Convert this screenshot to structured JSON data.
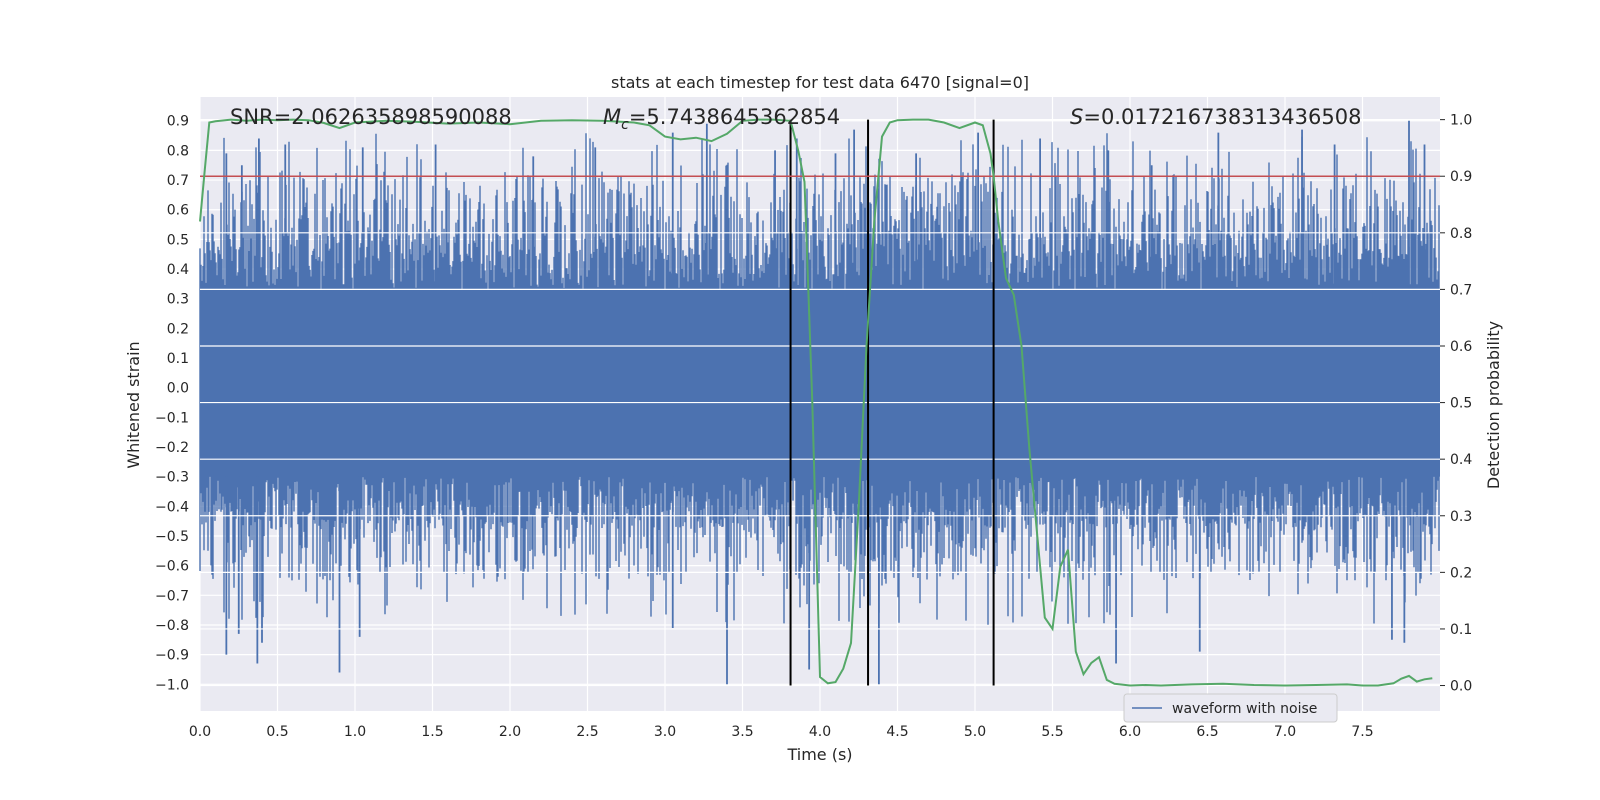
{
  "chart_data": {
    "type": "line",
    "title": "stats at each timestep for test data 6470 [signal=0]",
    "xlabel": "Time (s)",
    "ylabel_left": "Whitened strain",
    "ylabel_right": "Detection probability",
    "xlim": [
      0.0,
      8.0
    ],
    "ylim_left": [
      -1.09,
      0.98
    ],
    "ylim_right": [
      -0.045,
      1.04
    ],
    "x_ticks": [
      "0.0",
      "0.5",
      "1.0",
      "1.5",
      "2.0",
      "2.5",
      "3.0",
      "3.5",
      "4.0",
      "4.5",
      "5.0",
      "5.5",
      "6.0",
      "6.5",
      "7.0",
      "7.5"
    ],
    "y_left_ticks": [
      "0.9",
      "0.8",
      "0.7",
      "0.6",
      "0.5",
      "0.4",
      "0.3",
      "0.2",
      "0.1",
      "0.0",
      "−0.1",
      "−0.2",
      "−0.3",
      "−0.4",
      "−0.5",
      "−0.6",
      "−0.7",
      "−0.8",
      "−0.9",
      "−1.0"
    ],
    "y_right_ticks": [
      "1.0",
      "0.9",
      "0.8",
      "0.7",
      "0.6",
      "0.5",
      "0.4",
      "0.3",
      "0.2",
      "0.1",
      "0.0"
    ],
    "annotations": {
      "snr": "SNR=2.062635898590088",
      "mc_symbol": "M",
      "mc_sub": "c",
      "mc_value": "=5.7438645362854",
      "s_symbol": "S",
      "s_value": "=0.017216738313436508"
    },
    "threshold": {
      "value": 0.9,
      "axis": "right",
      "color": "#c44e52"
    },
    "vertical_lines": [
      3.81,
      4.31,
      5.12
    ],
    "legend": {
      "label": "waveform with noise",
      "placement": "lower-right"
    },
    "waveform": {
      "name": "waveform with noise",
      "color": "#4c72b0",
      "core_envelope": [
        -0.3,
        0.33
      ],
      "min_value": -1.0,
      "max_value": 0.9,
      "peak_spikes": [
        {
          "x": 0.27,
          "y": 0.75
        },
        {
          "x": 0.38,
          "y": 0.84
        },
        {
          "x": 0.17,
          "y": 0.79
        },
        {
          "x": 0.55,
          "y": 0.82
        },
        {
          "x": 1.05,
          "y": 0.81
        },
        {
          "x": 1.52,
          "y": 0.82
        },
        {
          "x": 2.15,
          "y": 0.78
        },
        {
          "x": 2.55,
          "y": 0.81
        },
        {
          "x": 3.05,
          "y": 0.86
        },
        {
          "x": 3.27,
          "y": 0.89
        },
        {
          "x": 3.71,
          "y": 0.8
        },
        {
          "x": 3.85,
          "y": 0.84
        },
        {
          "x": 4.1,
          "y": 0.79
        },
        {
          "x": 4.22,
          "y": 0.87
        },
        {
          "x": 4.62,
          "y": 0.79
        },
        {
          "x": 5.02,
          "y": 0.86
        },
        {
          "x": 5.42,
          "y": 0.84
        },
        {
          "x": 5.86,
          "y": 0.8
        },
        {
          "x": 6.14,
          "y": 0.75
        },
        {
          "x": 6.57,
          "y": 0.86
        },
        {
          "x": 7.11,
          "y": 0.87
        },
        {
          "x": 7.32,
          "y": 0.82
        },
        {
          "x": 7.8,
          "y": 0.9
        },
        {
          "x": 7.9,
          "y": 0.82
        }
      ],
      "trough_spikes": [
        {
          "x": 0.17,
          "y": -0.9
        },
        {
          "x": 0.25,
          "y": -0.83
        },
        {
          "x": 0.37,
          "y": -0.93
        },
        {
          "x": 0.4,
          "y": -0.86
        },
        {
          "x": 0.9,
          "y": -0.96
        },
        {
          "x": 1.03,
          "y": -0.84
        },
        {
          "x": 3.4,
          "y": -1.0
        },
        {
          "x": 3.93,
          "y": -0.95
        },
        {
          "x": 4.38,
          "y": -1.0
        },
        {
          "x": 5.91,
          "y": -0.93
        },
        {
          "x": 6.45,
          "y": -0.89
        },
        {
          "x": 7.77,
          "y": -0.86
        },
        {
          "x": 7.69,
          "y": -0.85
        },
        {
          "x": 3.05,
          "y": -0.81
        }
      ]
    },
    "detection_probability": {
      "name": "Detection probability",
      "color": "#55a868",
      "x": [
        0.0,
        0.03,
        0.06,
        0.1,
        0.2,
        0.3,
        0.4,
        0.5,
        0.6,
        0.7,
        0.8,
        0.9,
        1.0,
        1.2,
        1.4,
        1.6,
        1.8,
        2.0,
        2.2,
        2.4,
        2.6,
        2.8,
        2.9,
        3.0,
        3.1,
        3.2,
        3.3,
        3.4,
        3.5,
        3.6,
        3.7,
        3.81,
        3.86,
        3.9,
        3.95,
        4.0,
        4.05,
        4.1,
        4.15,
        4.2,
        4.25,
        4.3,
        4.35,
        4.4,
        4.45,
        4.5,
        4.6,
        4.7,
        4.8,
        4.9,
        5.0,
        5.05,
        5.1,
        5.12,
        5.15,
        5.2,
        5.25,
        5.3,
        5.35,
        5.4,
        5.45,
        5.5,
        5.55,
        5.6,
        5.65,
        5.7,
        5.75,
        5.8,
        5.85,
        5.9,
        6.0,
        6.1,
        6.2,
        6.4,
        6.6,
        6.8,
        7.0,
        7.2,
        7.4,
        7.5,
        7.6,
        7.7,
        7.75,
        7.8,
        7.85,
        7.9,
        7.95
      ],
      "y": [
        0.82,
        0.91,
        0.995,
        0.997,
        1.0,
        0.998,
        1.0,
        0.999,
        1.0,
        0.999,
        0.994,
        0.985,
        0.995,
        0.998,
        0.996,
        0.993,
        0.995,
        0.992,
        0.998,
        0.999,
        0.998,
        0.995,
        0.99,
        0.97,
        0.965,
        0.968,
        0.962,
        0.975,
        0.998,
        1.0,
        1.0,
        0.998,
        0.945,
        0.89,
        0.5,
        0.015,
        0.004,
        0.006,
        0.03,
        0.075,
        0.32,
        0.6,
        0.82,
        0.97,
        0.995,
        0.999,
        1.0,
        1.0,
        0.995,
        0.985,
        0.995,
        0.99,
        0.94,
        0.9,
        0.82,
        0.72,
        0.69,
        0.6,
        0.42,
        0.27,
        0.12,
        0.1,
        0.21,
        0.24,
        0.06,
        0.02,
        0.04,
        0.05,
        0.01,
        0.003,
        0.0,
        0.001,
        0.0,
        0.002,
        0.003,
        0.001,
        0.0,
        0.001,
        0.002,
        0.0,
        0.0,
        0.004,
        0.012,
        0.017,
        0.007,
        0.011,
        0.013
      ]
    }
  }
}
